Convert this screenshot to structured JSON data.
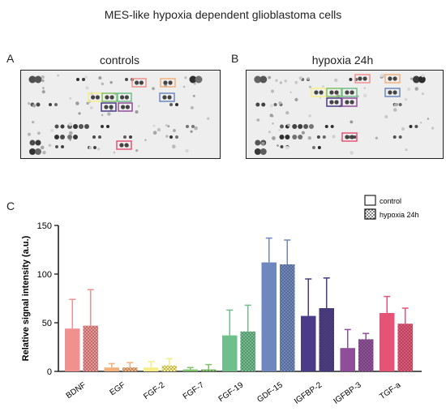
{
  "figure": {
    "title": "MES-like hypoxia dependent glioblastoma cells",
    "panels": {
      "a": "A",
      "b": "B",
      "c": "C"
    },
    "blot_titles": {
      "a": "controls",
      "b": "hypoxia 24h"
    }
  },
  "colors": {
    "BDNF": "#f0918f",
    "EGF": "#f2b07c",
    "FGF-2": "#f6ed86",
    "FGF-7": "#7dc267",
    "FGF-19": "#6fbf8c",
    "GDF-15": "#6e87be",
    "IGFBP-2": "#4b3a87",
    "IGFBP-3": "#8f4e98",
    "TGF-a": "#e55477"
  },
  "chart_data": {
    "type": "bar",
    "ylabel": "Relative signal intensity (a.u.)",
    "ylim": [
      0,
      150
    ],
    "yticks": [
      "0",
      "50",
      "100",
      "150"
    ],
    "categories": [
      "BDNF",
      "EGF",
      "FGF-2",
      "FGF-7",
      "FGF-19",
      "GDF-15",
      "IGFBP-2",
      "IGFBP-3",
      "TGF-a"
    ],
    "legend": {
      "position": "top-right",
      "control": "control",
      "hypoxia": "hypoxia 24h"
    },
    "series": [
      {
        "name": "control",
        "pattern": "solid",
        "values": [
          44,
          4,
          4,
          2,
          37,
          112,
          57,
          24,
          60
        ],
        "errors": [
          30,
          4,
          6,
          2,
          26,
          25,
          38,
          19,
          17
        ]
      },
      {
        "name": "hypoxia 24h",
        "pattern": "dotted",
        "values": [
          47,
          4,
          6,
          2,
          41,
          110,
          65,
          33,
          49
        ],
        "errors": [
          37,
          5,
          7,
          5,
          27,
          25,
          31,
          6,
          16
        ]
      }
    ]
  }
}
